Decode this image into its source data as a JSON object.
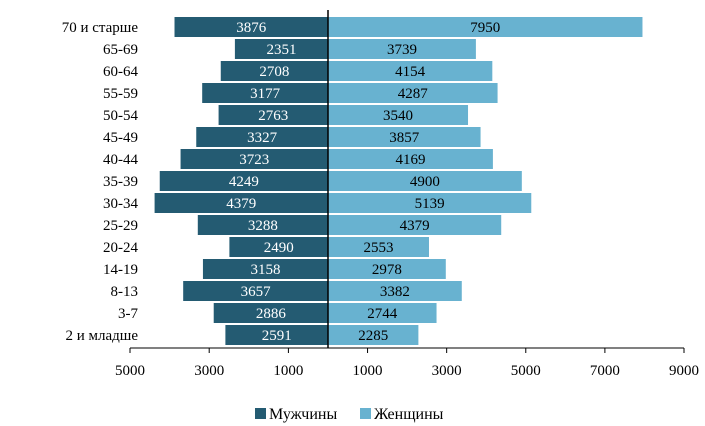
{
  "chart_data": {
    "type": "bar",
    "orientation": "horizontal-diverging",
    "categories": [
      "70 и старше",
      "65-69",
      "60-64",
      "55-59",
      "50-54",
      "45-49",
      "40-44",
      "35-39",
      "30-34",
      "25-29",
      "20-24",
      "14-19",
      "8-13",
      "3-7",
      "2 и младше"
    ],
    "series": [
      {
        "name": "Мужчины",
        "direction": "left",
        "color": "#245b72",
        "values": [
          3876,
          2351,
          2708,
          3177,
          2763,
          3327,
          3723,
          4249,
          4379,
          3288,
          2490,
          3158,
          3657,
          2886,
          2591
        ]
      },
      {
        "name": "Женщины",
        "direction": "right",
        "color": "#68b2d0",
        "values": [
          7950,
          3739,
          4154,
          4287,
          3540,
          3857,
          4169,
          4900,
          5139,
          4379,
          2553,
          2978,
          3382,
          2744,
          2285
        ]
      }
    ],
    "x_ticks": [
      "5000",
      "3000",
      "1000",
      "1000",
      "3000",
      "5000",
      "7000",
      "9000"
    ],
    "xlim_left": 5000,
    "xlim_right": 9000,
    "legend_position": "bottom-center",
    "grid": false
  }
}
